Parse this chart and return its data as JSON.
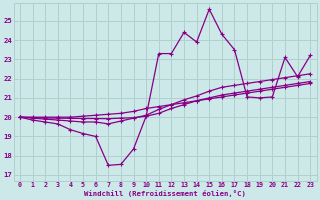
{
  "xlabel": "Windchill (Refroidissement éolien,°C)",
  "x_ticks": [
    0,
    1,
    2,
    3,
    4,
    5,
    6,
    7,
    8,
    9,
    10,
    11,
    12,
    13,
    14,
    15,
    16,
    17,
    18,
    19,
    20,
    21,
    22,
    23
  ],
  "y_ticks": [
    17,
    18,
    19,
    20,
    21,
    22,
    23,
    24,
    25
  ],
  "ylim": [
    16.7,
    25.9
  ],
  "xlim": [
    -0.5,
    23.5
  ],
  "bg_color": "#cce8e8",
  "grid_color": "#b0d0cc",
  "line_color": "#880088",
  "series1": [
    20.0,
    19.85,
    19.75,
    19.65,
    19.35,
    19.15,
    19.0,
    17.5,
    17.55,
    18.35,
    20.05,
    23.3,
    23.3,
    24.4,
    23.9,
    25.6,
    24.3,
    23.5,
    21.05,
    21.0,
    21.05,
    23.1,
    22.1,
    23.2
  ],
  "series2": [
    20.0,
    19.95,
    19.9,
    19.85,
    19.8,
    19.75,
    19.75,
    19.65,
    19.8,
    19.95,
    20.1,
    20.4,
    20.65,
    20.9,
    21.1,
    21.35,
    21.55,
    21.65,
    21.75,
    21.85,
    21.95,
    22.05,
    22.15,
    22.25
  ],
  "series3": [
    20.0,
    19.98,
    19.96,
    19.95,
    19.94,
    19.93,
    19.93,
    19.92,
    19.95,
    19.97,
    20.05,
    20.2,
    20.45,
    20.65,
    20.85,
    21.0,
    21.15,
    21.25,
    21.35,
    21.45,
    21.55,
    21.65,
    21.75,
    21.85
  ],
  "series4": [
    20.0,
    20.0,
    20.0,
    20.0,
    20.0,
    20.05,
    20.1,
    20.15,
    20.2,
    20.3,
    20.45,
    20.55,
    20.65,
    20.75,
    20.85,
    20.95,
    21.05,
    21.15,
    21.25,
    21.35,
    21.45,
    21.55,
    21.65,
    21.75
  ]
}
